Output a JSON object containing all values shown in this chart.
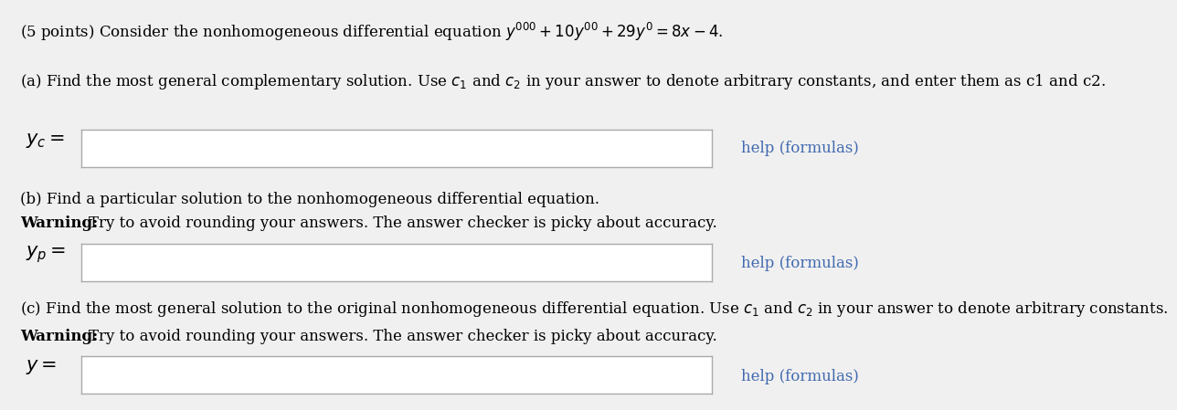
{
  "background_color": "#f0f0f0",
  "title_text": "(5 points) Consider the nonhomogeneous differential equation $y^{\\prime\\prime\\prime} + 10y^{\\prime\\prime} + 29y^{\\prime} = 8x - 4.$",
  "part_a_text": "(a) Find the most general complementary solution. Use $c_1$ and $c_2$ in your answer to denote arbitrary constants, and enter them as c1 and c2.",
  "yc_label": "$y_c =$",
  "part_b_line1": "(b) Find a particular solution to the nonhomogeneous differential equation.",
  "part_b_line2": "Try to avoid rounding your answers. The answer checker is picky about accuracy.",
  "yp_label": "$y_p =$",
  "part_c_line1": "(c) Find the most general solution to the original nonhomogeneous differential equation. Use $c_1$ and $c_2$ in your answer to denote arbitrary constants.",
  "part_c_line2": "Try to avoid rounding your answers. The answer checker is picky about accuracy.",
  "y_label": "$y =$",
  "help_text": "help (formulas)",
  "help_color": "#4169b0",
  "box_color": "#ffffff",
  "box_border_color": "#aaaaaa",
  "text_color": "#000000",
  "font_size_body": 12,
  "font_size_label": 13
}
